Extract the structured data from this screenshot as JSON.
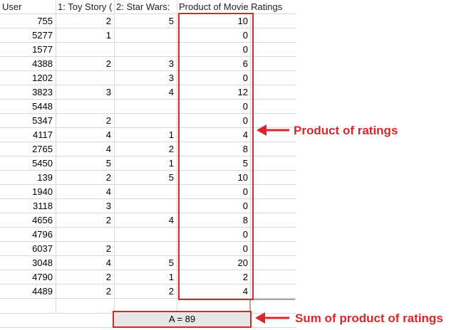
{
  "headers": [
    "User",
    "1: Toy Story (",
    "2: Star Wars:",
    "Product of Movie Ratings"
  ],
  "rows": [
    {
      "user": "755",
      "toy": "2",
      "star": "5",
      "product": "10"
    },
    {
      "user": "5277",
      "toy": "1",
      "star": "",
      "product": "0"
    },
    {
      "user": "1577",
      "toy": "",
      "star": "",
      "product": "0"
    },
    {
      "user": "4388",
      "toy": "2",
      "star": "3",
      "product": "6"
    },
    {
      "user": "1202",
      "toy": "",
      "star": "3",
      "product": "0"
    },
    {
      "user": "3823",
      "toy": "3",
      "star": "4",
      "product": "12"
    },
    {
      "user": "5448",
      "toy": "",
      "star": "",
      "product": "0"
    },
    {
      "user": "5347",
      "toy": "2",
      "star": "",
      "product": "0"
    },
    {
      "user": "4117",
      "toy": "4",
      "star": "1",
      "product": "4"
    },
    {
      "user": "2765",
      "toy": "4",
      "star": "2",
      "product": "8"
    },
    {
      "user": "5450",
      "toy": "5",
      "star": "1",
      "product": "5"
    },
    {
      "user": "139",
      "toy": "2",
      "star": "5",
      "product": "10"
    },
    {
      "user": "1940",
      "toy": "4",
      "star": "",
      "product": "0"
    },
    {
      "user": "3118",
      "toy": "3",
      "star": "",
      "product": "0"
    },
    {
      "user": "4656",
      "toy": "2",
      "star": "4",
      "product": "8"
    },
    {
      "user": "4796",
      "toy": "",
      "star": "",
      "product": "0"
    },
    {
      "user": "6037",
      "toy": "2",
      "star": "",
      "product": "0"
    },
    {
      "user": "3048",
      "toy": "4",
      "star": "5",
      "product": "20"
    },
    {
      "user": "4790",
      "toy": "2",
      "star": "1",
      "product": "2"
    },
    {
      "user": "4489",
      "toy": "2",
      "star": "2",
      "product": "4"
    }
  ],
  "sum_label": "A =  89",
  "annotations": {
    "product_label": "Product of ratings",
    "sum_label": "Sum of product of ratings"
  },
  "colors": {
    "annotation_red": "#d9262c",
    "sum_cell_fill": "#e6e6e6",
    "gridline": "#d9d9d9"
  }
}
